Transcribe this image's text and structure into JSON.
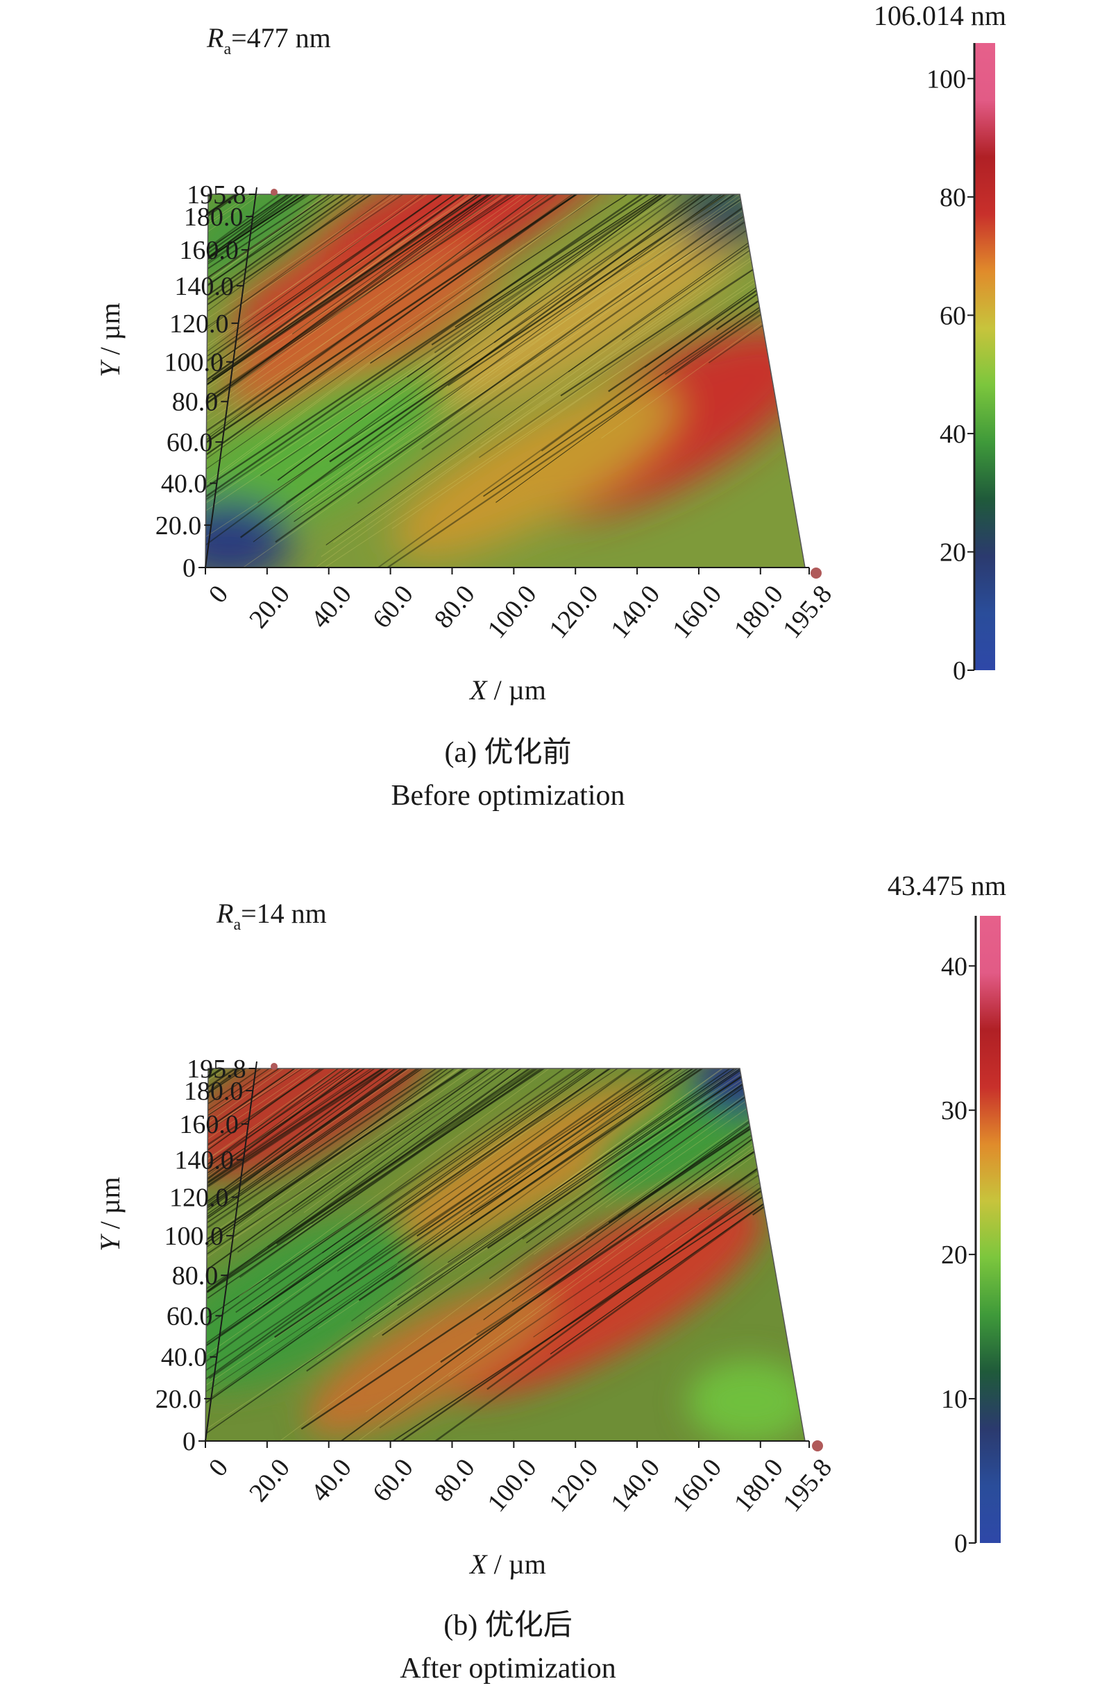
{
  "chart_data": [
    {
      "type": "heatmap",
      "panel": "a",
      "ra_text": "477 nm",
      "ra_symbol": "R",
      "ra_sub": "a",
      "colorbar_max_label": "106.014 nm",
      "colorbar_max": 106.014,
      "colorbar_ticks": [
        "0",
        "20",
        "40",
        "60",
        "80",
        "100"
      ],
      "colorbar_tick_values": [
        0,
        20,
        40,
        60,
        80,
        100
      ],
      "x_ticks": [
        "0",
        "20.0",
        "40.0",
        "60.0",
        "80.0",
        "100.0",
        "120.0",
        "140.0",
        "160.0",
        "180.0",
        "195.8"
      ],
      "x_tick_values": [
        0,
        20,
        40,
        60,
        80,
        100,
        120,
        140,
        160,
        180,
        195.8
      ],
      "y_ticks": [
        "0",
        "20.0",
        "40.0",
        "60.0",
        "80.0",
        "100.0",
        "120.0",
        "140.0",
        "160.0",
        "180.0",
        "195.8"
      ],
      "y_tick_values": [
        0,
        20,
        40,
        60,
        80,
        100,
        120,
        140,
        160,
        180,
        195.8
      ],
      "xlabel_var": "X",
      "xlabel_unit": " / µm",
      "ylabel_var": "Y",
      "ylabel_unit": " / µm",
      "caption_cn": "(a) 优化前",
      "caption_en": "Before optimization",
      "xlim": [
        0,
        195.8
      ],
      "ylim": [
        0,
        195.8
      ],
      "colormap": [
        "#2e48a8",
        "#2a4d9a",
        "#2b3a6e",
        "#1f5a3a",
        "#3f9a3a",
        "#7cc63d",
        "#c7c43c",
        "#e08b2b",
        "#c8302b",
        "#b02025",
        "#e25b86",
        "#e6608b"
      ]
    },
    {
      "type": "heatmap",
      "panel": "b",
      "ra_text": "14 nm",
      "ra_symbol": "R",
      "ra_sub": "a",
      "colorbar_max_label": "43.475 nm",
      "colorbar_max": 43.475,
      "colorbar_ticks": [
        "0",
        "10",
        "20",
        "30",
        "40"
      ],
      "colorbar_tick_values": [
        0,
        10,
        20,
        30,
        40
      ],
      "x_ticks": [
        "0",
        "20.0",
        "40.0",
        "60.0",
        "80.0",
        "100.0",
        "120.0",
        "140.0",
        "160.0",
        "180.0",
        "195.8"
      ],
      "x_tick_values": [
        0,
        20,
        40,
        60,
        80,
        100,
        120,
        140,
        160,
        180,
        195.8
      ],
      "y_ticks": [
        "0",
        "20.0",
        "40.0",
        "60.0",
        "80.0",
        "100.0",
        "120.0",
        "140.0",
        "160.0",
        "180.0",
        "195.8"
      ],
      "y_tick_values": [
        0,
        20,
        40,
        60,
        80,
        100,
        120,
        140,
        160,
        180,
        195.8
      ],
      "xlabel_var": "X",
      "xlabel_unit": " / µm",
      "ylabel_var": "Y",
      "ylabel_unit": " / µm",
      "caption_cn": "(b) 优化后",
      "caption_en": "After optimization",
      "xlim": [
        0,
        195.8
      ],
      "ylim": [
        0,
        195.8
      ],
      "colormap": [
        "#2e48a8",
        "#2a4d9a",
        "#2b3a6e",
        "#1f5a3a",
        "#3f9a3a",
        "#7cc63d",
        "#c7c43c",
        "#e08b2b",
        "#c8302b",
        "#b02025",
        "#e25b86",
        "#e6608b"
      ]
    }
  ]
}
